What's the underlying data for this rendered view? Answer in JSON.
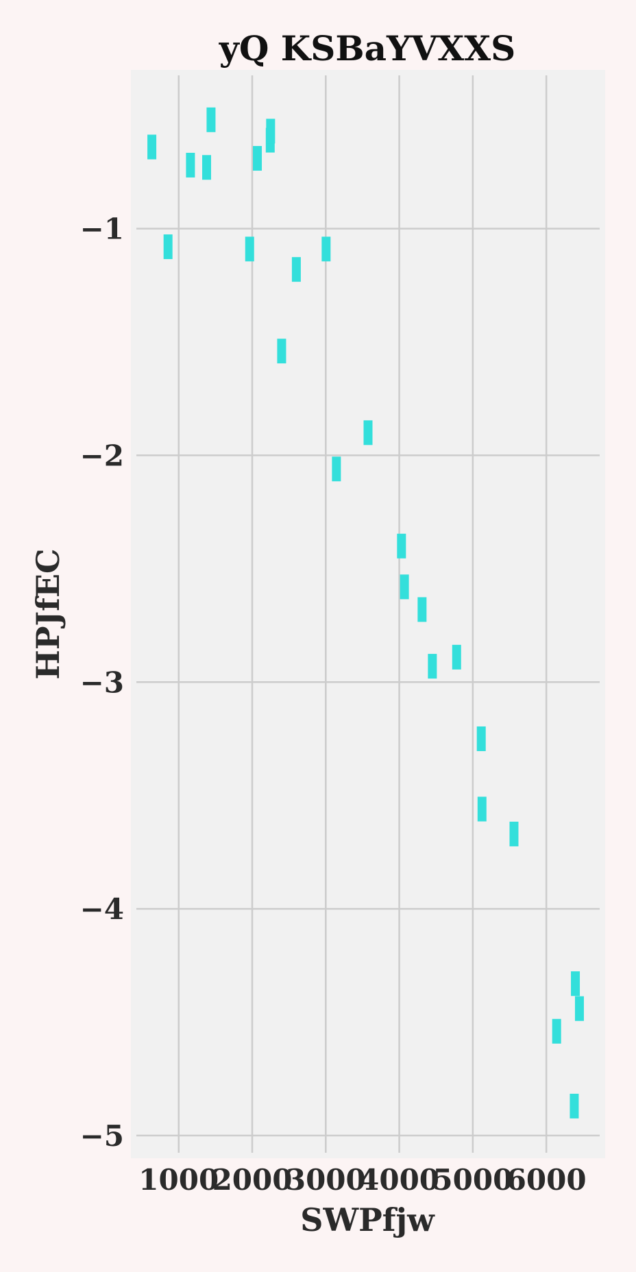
{
  "chart_data": {
    "type": "scatter",
    "title": "yQ KSBaYVXXS",
    "xlabel": "SWPfjw",
    "ylabel": "HPJfEC",
    "xlim": [
      350,
      6800
    ],
    "ylim": [
      -5.1,
      -0.3
    ],
    "x_ticks": [
      1000,
      2000,
      3000,
      4000,
      5000,
      6000
    ],
    "y_ticks": [
      -1,
      -2,
      -3,
      -4,
      -5
    ],
    "x_tick_labels": [
      "1000",
      "2000",
      "3000",
      "4000",
      "5000",
      "6000"
    ],
    "y_tick_labels": [
      "−1",
      "−2",
      "−3",
      "−4",
      "−5"
    ],
    "grid": true,
    "marker": "vertical-bar",
    "colors": {
      "page_background": "#fcf4f4",
      "plot_background": "#f1f1f1",
      "grid": "#cccccc",
      "marker": "#33dfdb"
    },
    "points": [
      {
        "x": 635,
        "y": -0.64
      },
      {
        "x": 855,
        "y": -1.08
      },
      {
        "x": 1160,
        "y": -0.72
      },
      {
        "x": 1380,
        "y": -0.73
      },
      {
        "x": 1440,
        "y": -0.52
      },
      {
        "x": 1965,
        "y": -1.09
      },
      {
        "x": 2070,
        "y": -0.69
      },
      {
        "x": 2245,
        "y": -0.61
      },
      {
        "x": 2250,
        "y": -0.57
      },
      {
        "x": 2400,
        "y": -1.54
      },
      {
        "x": 2600,
        "y": -1.18
      },
      {
        "x": 3005,
        "y": -1.09
      },
      {
        "x": 3145,
        "y": -2.06
      },
      {
        "x": 3575,
        "y": -1.9
      },
      {
        "x": 4030,
        "y": -2.4
      },
      {
        "x": 4070,
        "y": -2.58
      },
      {
        "x": 4310,
        "y": -2.68
      },
      {
        "x": 4450,
        "y": -2.93
      },
      {
        "x": 4780,
        "y": -2.89
      },
      {
        "x": 5115,
        "y": -3.25
      },
      {
        "x": 5125,
        "y": -3.56
      },
      {
        "x": 5560,
        "y": -3.67
      },
      {
        "x": 6140,
        "y": -4.54
      },
      {
        "x": 6380,
        "y": -4.87
      },
      {
        "x": 6395,
        "y": -4.33
      },
      {
        "x": 6450,
        "y": -4.44
      }
    ]
  }
}
